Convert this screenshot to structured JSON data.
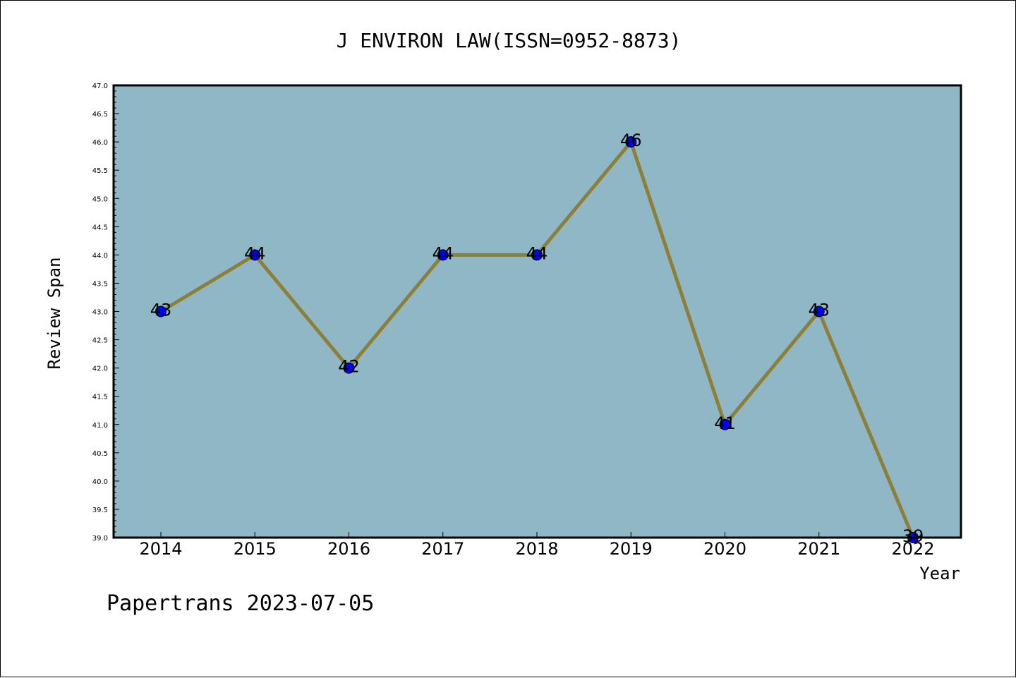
{
  "chart_data": {
    "type": "line",
    "title": "J ENVIRON LAW(ISSN=0952-8873)",
    "xlabel": "Year",
    "ylabel": "Review Span",
    "categories": [
      "2014",
      "2015",
      "2016",
      "2017",
      "2018",
      "2019",
      "2020",
      "2021",
      "2022"
    ],
    "values": [
      43,
      44,
      42,
      44,
      44,
      46,
      41,
      43,
      39
    ],
    "data_labels": [
      "43",
      "44",
      "42",
      "44",
      "44",
      "46",
      "41",
      "43",
      "39"
    ],
    "ylim": [
      39.0,
      47.0
    ],
    "yticks": [
      "39.0",
      "39.5",
      "40.0",
      "40.5",
      "41.0",
      "41.5",
      "42.0",
      "42.5",
      "43.0",
      "43.5",
      "44.0",
      "44.5",
      "45.0",
      "45.5",
      "46.0",
      "46.5",
      "47.0"
    ],
    "grid": false,
    "colors": {
      "plot_background": "#8fb7c5",
      "line": "#8c8038",
      "marker": "#0000ff",
      "marker_edge": "#000000"
    }
  },
  "footer": {
    "watermark": "Papertrans 2023-07-05"
  }
}
